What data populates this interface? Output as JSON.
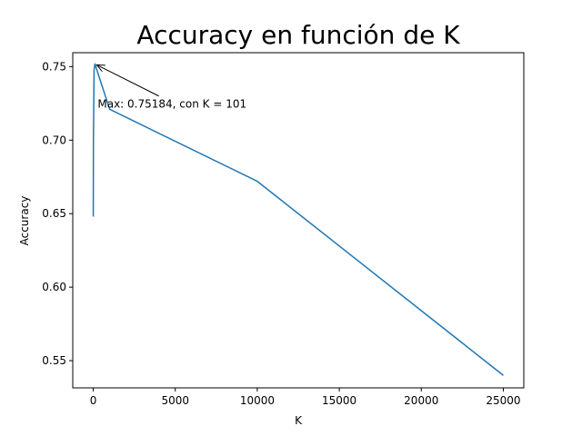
{
  "chart_data": {
    "type": "line",
    "title": "Accuracy en función de K",
    "xlabel": "K",
    "ylabel": "Accuracy",
    "xlim": [
      -1250,
      26250
    ],
    "ylim": [
      0.5315,
      0.7595
    ],
    "xticks": [
      0,
      5000,
      10000,
      15000,
      20000,
      25000
    ],
    "xtick_labels": [
      "0",
      "5000",
      "10000",
      "15000",
      "20000",
      "25000"
    ],
    "yticks": [
      0.55,
      0.6,
      0.65,
      0.7,
      0.75
    ],
    "ytick_labels": [
      "0.55",
      "0.60",
      "0.65",
      "0.70",
      "0.75"
    ],
    "grid": false,
    "series": [
      {
        "color": "#1f77b4",
        "x": [
          1,
          11,
          51,
          101,
          1001,
          10001,
          25001
        ],
        "y": [
          0.648,
          0.7,
          0.748,
          0.75184,
          0.721,
          0.672,
          0.54
        ]
      }
    ],
    "annotations": [
      {
        "text": "Max: 0.75184, con K = 101",
        "point": [
          101,
          0.75184
        ],
        "text_anchor_data": [
          4000,
          0.73
        ]
      }
    ]
  }
}
